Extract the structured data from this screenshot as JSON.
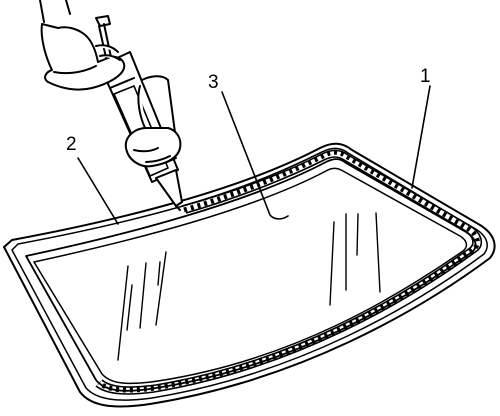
{
  "callouts": [
    {
      "id": "callout-1",
      "text": "1"
    },
    {
      "id": "callout-2",
      "text": "2"
    },
    {
      "id": "callout-3",
      "text": "3"
    }
  ],
  "colors": {
    "line": "#000000",
    "paper": "#ffffff"
  },
  "icons": [
    "windshield-glass",
    "urethane-bead",
    "caulking-gun",
    "hand"
  ]
}
